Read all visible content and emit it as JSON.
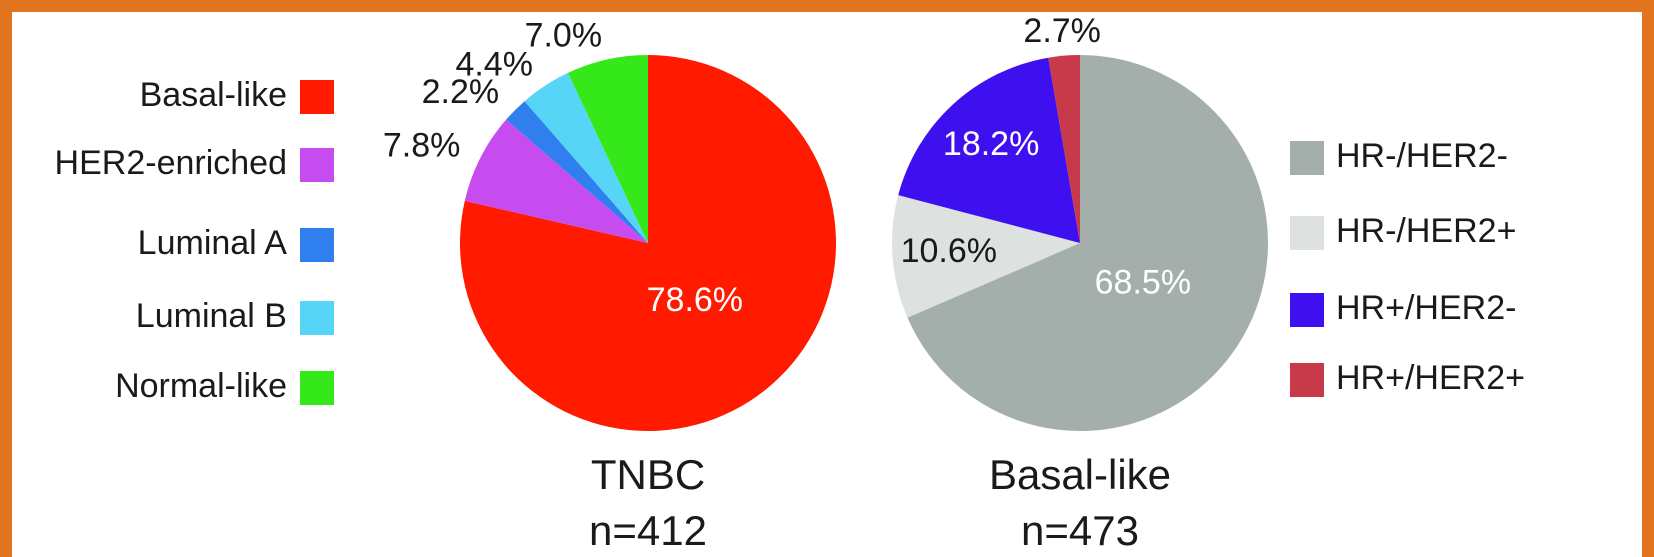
{
  "chart_data": [
    {
      "type": "pie",
      "title": "TNBC",
      "subtitle": "n=412",
      "legend": "left",
      "categories": [
        "Basal-like",
        "HER2-enriched",
        "Luminal A",
        "Luminal B",
        "Normal-like"
      ],
      "values": [
        78.6,
        7.8,
        2.2,
        4.4,
        7.0
      ],
      "value_labels": [
        "78.6%",
        "7.8%",
        "2.2%",
        "4.4%",
        "7.0%"
      ],
      "colors": [
        "#ff1a00",
        "#c74cf0",
        "#2f7fef",
        "#56d5f7",
        "#35e81a"
      ]
    },
    {
      "type": "pie",
      "title": "Basal-like",
      "subtitle": "n=473",
      "legend": "right",
      "categories": [
        "HR-/HER2-",
        "HR-/HER2+",
        "HR+/HER2-",
        "HR+/HER2+"
      ],
      "values": [
        68.5,
        10.6,
        18.2,
        2.7
      ],
      "value_labels": [
        "68.5%",
        "10.6%",
        "18.2%",
        "2.7%"
      ],
      "colors": [
        "#a4aeab",
        "#dde2e0",
        "#3f10ef",
        "#c8394a"
      ]
    }
  ]
}
